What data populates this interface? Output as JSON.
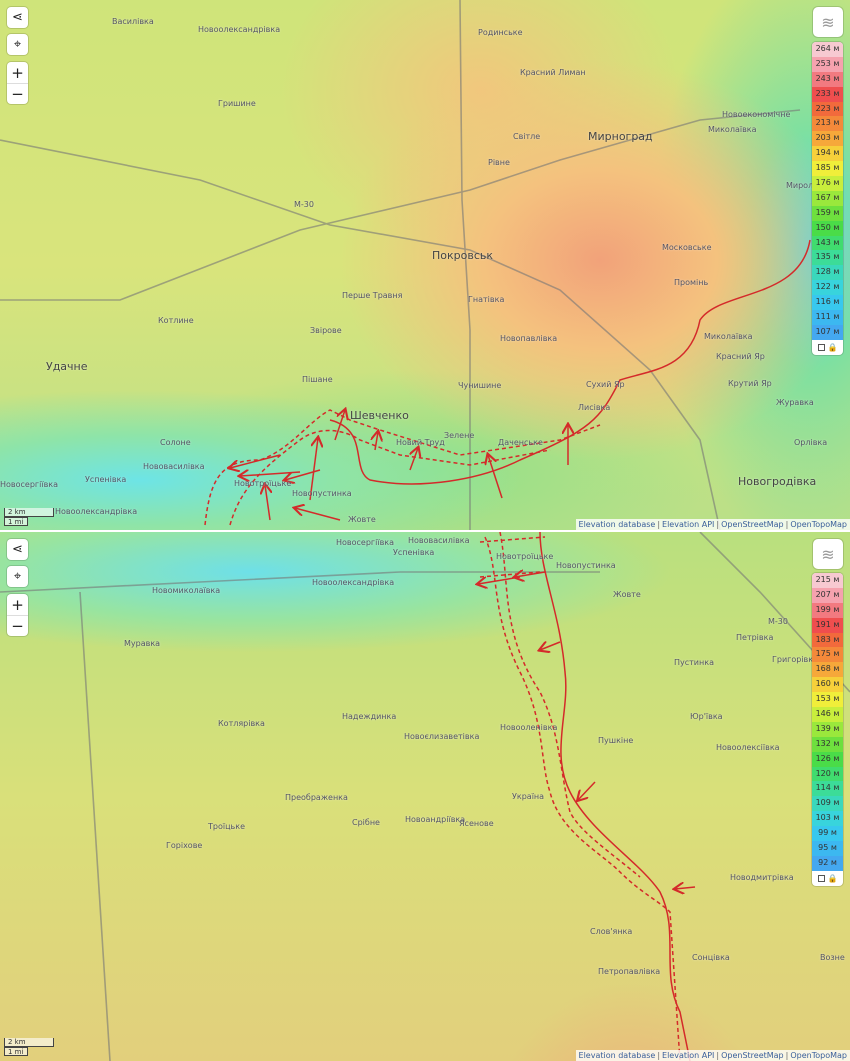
{
  "top_map": {
    "controls": {
      "share_icon": "share-icon",
      "locate_icon": "locate-icon",
      "zoom_in": "+",
      "zoom_out": "−",
      "layers_icon": "layers-icon"
    },
    "legend": {
      "items": [
        {
          "label": "264 м",
          "color": "#f7c9d1"
        },
        {
          "label": "253 м",
          "color": "#f5a2ae"
        },
        {
          "label": "243 м",
          "color": "#f27a80"
        },
        {
          "label": "233 м",
          "color": "#ef4e4e"
        },
        {
          "label": "223 м",
          "color": "#f26a3c"
        },
        {
          "label": "213 м",
          "color": "#f4893a"
        },
        {
          "label": "203 м",
          "color": "#f6a83a"
        },
        {
          "label": "194 м",
          "color": "#f6d03a"
        },
        {
          "label": "185 м",
          "color": "#f0ee3a"
        },
        {
          "label": "176 м",
          "color": "#c8ee3c"
        },
        {
          "label": "167 м",
          "color": "#9ae83c"
        },
        {
          "label": "159 м",
          "color": "#6ee03e"
        },
        {
          "label": "150 м",
          "color": "#4adc48"
        },
        {
          "label": "143 м",
          "color": "#40dc6e"
        },
        {
          "label": "135 м",
          "color": "#3cdc98"
        },
        {
          "label": "128 м",
          "color": "#3ad8bc"
        },
        {
          "label": "122 м",
          "color": "#38d4dc"
        },
        {
          "label": "116 м",
          "color": "#38c8ee"
        },
        {
          "label": "111 м",
          "color": "#3cb8f0"
        },
        {
          "label": "107 м",
          "color": "#44a8f0"
        }
      ]
    },
    "places": [
      {
        "name": "Василівка",
        "cls": ""
      },
      {
        "name": "Новоолександрівка",
        "cls": ""
      },
      {
        "name": "Родинське",
        "cls": ""
      },
      {
        "name": "Красний Лиман",
        "cls": ""
      },
      {
        "name": "Гришине",
        "cls": ""
      },
      {
        "name": "Новоекономічне",
        "cls": ""
      },
      {
        "name": "Миколаївка",
        "cls": ""
      },
      {
        "name": "Світле",
        "cls": ""
      },
      {
        "name": "Мирноград",
        "cls": "big"
      },
      {
        "name": "Рівне",
        "cls": ""
      },
      {
        "name": "Миролю",
        "cls": ""
      },
      {
        "name": "М-30",
        "cls": ""
      },
      {
        "name": "Покровськ",
        "cls": "big"
      },
      {
        "name": "Московське",
        "cls": ""
      },
      {
        "name": "Промінь",
        "cls": ""
      },
      {
        "name": "Перше Травня",
        "cls": ""
      },
      {
        "name": "Гнатівка",
        "cls": ""
      },
      {
        "name": "Котлине",
        "cls": ""
      },
      {
        "name": "Звірове",
        "cls": ""
      },
      {
        "name": "Новопавлівка",
        "cls": ""
      },
      {
        "name": "Миколаївка",
        "cls": ""
      },
      {
        "name": "Удачне",
        "cls": "big"
      },
      {
        "name": "Пішане",
        "cls": ""
      },
      {
        "name": "Красний Яр",
        "cls": ""
      },
      {
        "name": "Чунишине",
        "cls": ""
      },
      {
        "name": "Сухий Яр",
        "cls": ""
      },
      {
        "name": "Крутий Яр",
        "cls": ""
      },
      {
        "name": "Журавка",
        "cls": ""
      },
      {
        "name": "Шевченко",
        "cls": "big"
      },
      {
        "name": "Лисівка",
        "cls": ""
      },
      {
        "name": "Орлівка",
        "cls": ""
      },
      {
        "name": "Новий Труд",
        "cls": ""
      },
      {
        "name": "Зелене",
        "cls": ""
      },
      {
        "name": "Даченське",
        "cls": ""
      },
      {
        "name": "Солоне",
        "cls": ""
      },
      {
        "name": "Нововасилівка",
        "cls": ""
      },
      {
        "name": "Успенівка",
        "cls": ""
      },
      {
        "name": "Новосергіївка",
        "cls": ""
      },
      {
        "name": "Новотроїцьке",
        "cls": ""
      },
      {
        "name": "Новогродівка",
        "cls": "big"
      },
      {
        "name": "Новопустинка",
        "cls": ""
      },
      {
        "name": "Новоолександрівка",
        "cls": ""
      },
      {
        "name": "Жовте",
        "cls": ""
      }
    ],
    "scale": {
      "km": "2 km",
      "mi": "1 mi"
    }
  },
  "bottom_map": {
    "legend": {
      "items": [
        {
          "label": "215 м",
          "color": "#f7c9d1"
        },
        {
          "label": "207 м",
          "color": "#f5a2ae"
        },
        {
          "label": "199 м",
          "color": "#f27a80"
        },
        {
          "label": "191 м",
          "color": "#ef4e4e"
        },
        {
          "label": "183 м",
          "color": "#f26a3c"
        },
        {
          "label": "175 м",
          "color": "#f4893a"
        },
        {
          "label": "168 м",
          "color": "#f6a83a"
        },
        {
          "label": "160 м",
          "color": "#f6d03a"
        },
        {
          "label": "153 м",
          "color": "#f0ee3a"
        },
        {
          "label": "146 м",
          "color": "#c8ee3c"
        },
        {
          "label": "139 м",
          "color": "#9ae83c"
        },
        {
          "label": "132 м",
          "color": "#6ee03e"
        },
        {
          "label": "126 м",
          "color": "#4adc48"
        },
        {
          "label": "120 м",
          "color": "#40dc6e"
        },
        {
          "label": "114 м",
          "color": "#3cdc98"
        },
        {
          "label": "109 м",
          "color": "#3ad8bc"
        },
        {
          "label": "103 м",
          "color": "#38d4dc"
        },
        {
          "label": "99 м",
          "color": "#38c8ee"
        },
        {
          "label": "95 м",
          "color": "#3cb8f0"
        },
        {
          "label": "92 м",
          "color": "#44a8f0"
        }
      ]
    },
    "places": [
      {
        "name": "Новосергіївка",
        "cls": ""
      },
      {
        "name": "Нововасилівка",
        "cls": ""
      },
      {
        "name": "Успенівка",
        "cls": ""
      },
      {
        "name": "Новотроїцьке",
        "cls": ""
      },
      {
        "name": "Новопустинка",
        "cls": ""
      },
      {
        "name": "Новоолександрівка",
        "cls": ""
      },
      {
        "name": "Новомиколаївка",
        "cls": ""
      },
      {
        "name": "Жовте",
        "cls": ""
      },
      {
        "name": "Муравка",
        "cls": ""
      },
      {
        "name": "Петрівка",
        "cls": ""
      },
      {
        "name": "Григорівка",
        "cls": ""
      },
      {
        "name": "Пустинка",
        "cls": ""
      },
      {
        "name": "Котлярівка",
        "cls": ""
      },
      {
        "name": "Надеждинка",
        "cls": ""
      },
      {
        "name": "Новоєлизаветівка",
        "cls": ""
      },
      {
        "name": "Новооленівка",
        "cls": ""
      },
      {
        "name": "Пушкіне",
        "cls": ""
      },
      {
        "name": "Юр'ївка",
        "cls": ""
      },
      {
        "name": "Новоолексіївка",
        "cls": ""
      },
      {
        "name": "Преображенка",
        "cls": ""
      },
      {
        "name": "Україна",
        "cls": ""
      },
      {
        "name": "Срібне",
        "cls": ""
      },
      {
        "name": "Троїцьке",
        "cls": ""
      },
      {
        "name": "Новоандріївка",
        "cls": ""
      },
      {
        "name": "Ясенове",
        "cls": ""
      },
      {
        "name": "Горіхове",
        "cls": ""
      },
      {
        "name": "Новодмитрівка",
        "cls": ""
      },
      {
        "name": "Слов'янка",
        "cls": ""
      },
      {
        "name": "Возне",
        "cls": ""
      },
      {
        "name": "Сонцівка",
        "cls": ""
      },
      {
        "name": "Петропавлівка",
        "cls": ""
      },
      {
        "name": "М-30",
        "cls": ""
      }
    ],
    "scale": {
      "km": "2 km",
      "mi": "1 mi"
    }
  },
  "attribution": {
    "links": [
      "Elevation database",
      "Elevation API",
      "OpenStreetMap",
      "OpenTopoMap"
    ],
    "separator": "|"
  },
  "front_color": "#d42a2a"
}
